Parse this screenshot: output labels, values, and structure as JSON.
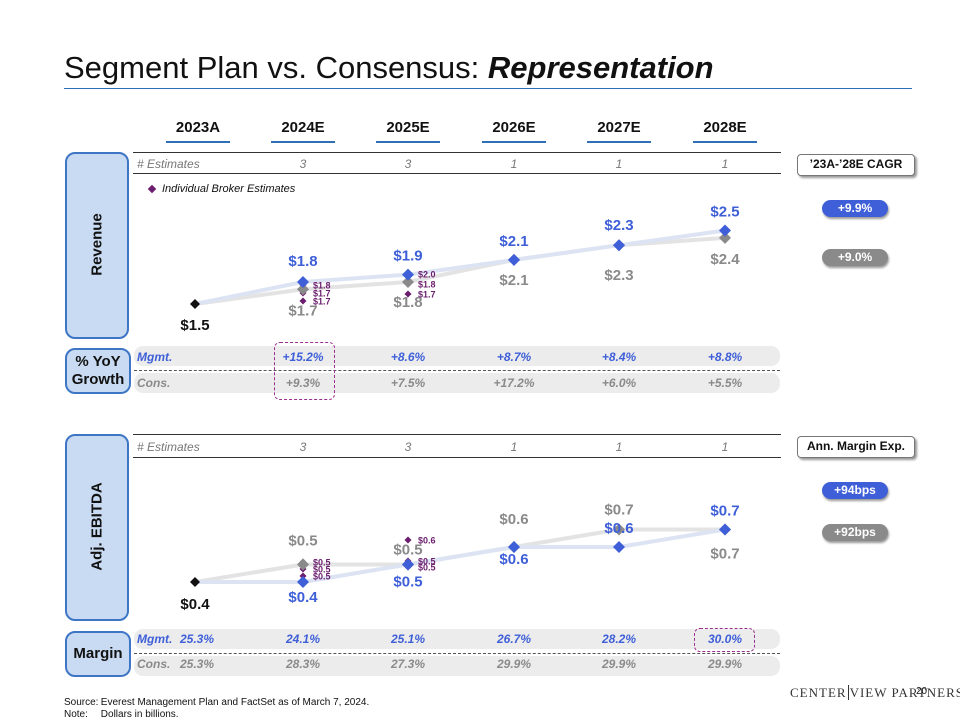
{
  "title": {
    "main": "Segment Plan vs. Consensus: ",
    "emph": "Representation"
  },
  "years": [
    "2023A",
    "2024E",
    "2025E",
    "2026E",
    "2027E",
    "2028E"
  ],
  "colors": {
    "mgmt": "#3e5fd8",
    "cons": "#8a8a8a",
    "broker": "#6b1d6e",
    "mgmt_line": "#dce3f3",
    "cons_line": "#e3e3e3",
    "accent": "#2f6fb5"
  },
  "revenue": {
    "label": "Revenue",
    "estimates_label": "# Estimates",
    "estimates": [
      "3",
      "3",
      "1",
      "1",
      "1"
    ],
    "legend": "Individual Broker Estimates",
    "cagr_label": "’23A-’28E CAGR",
    "mgmt_cagr": "+9.9%",
    "cons_cagr": "+9.0%"
  },
  "growth": {
    "label": "% YoY Growth",
    "mgmt_label": "Mgmt.",
    "cons_label": "Cons.",
    "mgmt": [
      "+15.2%",
      "+8.6%",
      "+8.7%",
      "+8.4%",
      "+8.8%"
    ],
    "cons": [
      "+9.3%",
      "+7.5%",
      "+17.2%",
      "+6.0%",
      "+5.5%"
    ]
  },
  "ebitda": {
    "label": "Adj. EBITDA",
    "estimates_label": "# Estimates",
    "estimates": [
      "3",
      "3",
      "1",
      "1",
      "1"
    ],
    "margin_exp_label": "Ann. Margin Exp.",
    "mgmt_exp": "+94bps",
    "cons_exp": "+92bps"
  },
  "margin": {
    "label": "Margin",
    "mgmt_label": "Mgmt.",
    "cons_label": "Cons.",
    "mgmt": [
      "25.3%",
      "24.1%",
      "25.1%",
      "26.7%",
      "28.2%",
      "30.0%"
    ],
    "cons": [
      "25.3%",
      "28.3%",
      "27.3%",
      "29.9%",
      "29.9%",
      "29.9%"
    ]
  },
  "chart_data": [
    {
      "type": "line",
      "title": "Revenue",
      "categories": [
        "2023A",
        "2024E",
        "2025E",
        "2026E",
        "2027E",
        "2028E"
      ],
      "actual": {
        "category": "2023A",
        "value": 1.5,
        "label": "$1.5"
      },
      "series": [
        {
          "name": "Mgmt.",
          "values": [
            1.5,
            1.8,
            1.9,
            2.1,
            2.3,
            2.5
          ],
          "labels": [
            "",
            "$1.8",
            "$1.9",
            "$2.1",
            "$2.3",
            "$2.5"
          ]
        },
        {
          "name": "Cons.",
          "values": [
            1.5,
            1.7,
            1.8,
            2.1,
            2.3,
            2.4
          ],
          "labels": [
            "",
            "$1.7",
            "$1.8",
            "$2.1",
            "$2.3",
            "$2.4"
          ]
        }
      ],
      "broker_estimates": [
        {
          "category": "2024E",
          "values": [
            1.8,
            1.7,
            1.7
          ],
          "labels": [
            "$1.8",
            "$1.7",
            "$1.7"
          ]
        },
        {
          "category": "2025E",
          "values": [
            2.0,
            1.8,
            1.7
          ],
          "labels": [
            "$2.0",
            "$1.8",
            "$1.7"
          ]
        }
      ],
      "ylim": [
        1.3,
        2.7
      ],
      "unit": "Dollars in billions"
    },
    {
      "type": "line",
      "title": "Adj. EBITDA",
      "categories": [
        "2023A",
        "2024E",
        "2025E",
        "2026E",
        "2027E",
        "2028E"
      ],
      "actual": {
        "category": "2023A",
        "value": 0.4,
        "label": "$0.4"
      },
      "series": [
        {
          "name": "Mgmt.",
          "values": [
            0.4,
            0.4,
            0.5,
            0.6,
            0.6,
            0.7
          ],
          "labels": [
            "",
            "$0.4",
            "$0.5",
            "$0.6",
            "$0.6",
            "$0.7"
          ]
        },
        {
          "name": "Cons.",
          "values": [
            0.4,
            0.5,
            0.5,
            0.6,
            0.7,
            0.7
          ],
          "labels": [
            "",
            "$0.5",
            "$0.5",
            "$0.6",
            "$0.7",
            "$0.7"
          ]
        }
      ],
      "broker_estimates": [
        {
          "category": "2024E",
          "values": [
            0.5,
            0.5,
            0.5
          ],
          "labels": [
            "$0.5",
            "$0.5",
            "$0.5"
          ]
        },
        {
          "category": "2025E",
          "values": [
            0.6,
            0.5,
            0.5
          ],
          "labels": [
            "$0.6",
            "$0.5",
            "$0.5"
          ]
        }
      ],
      "unit": "Dollars in billions"
    }
  ],
  "footer": {
    "source_key": "Source:",
    "source": "Everest Management Plan and FactSet as of March 7, 2024.",
    "note_key": "Note:",
    "note": "Dollars in billions."
  },
  "logo": {
    "left": "CENTER",
    "right": "VIEW PARTNERS"
  },
  "page_number": "20"
}
